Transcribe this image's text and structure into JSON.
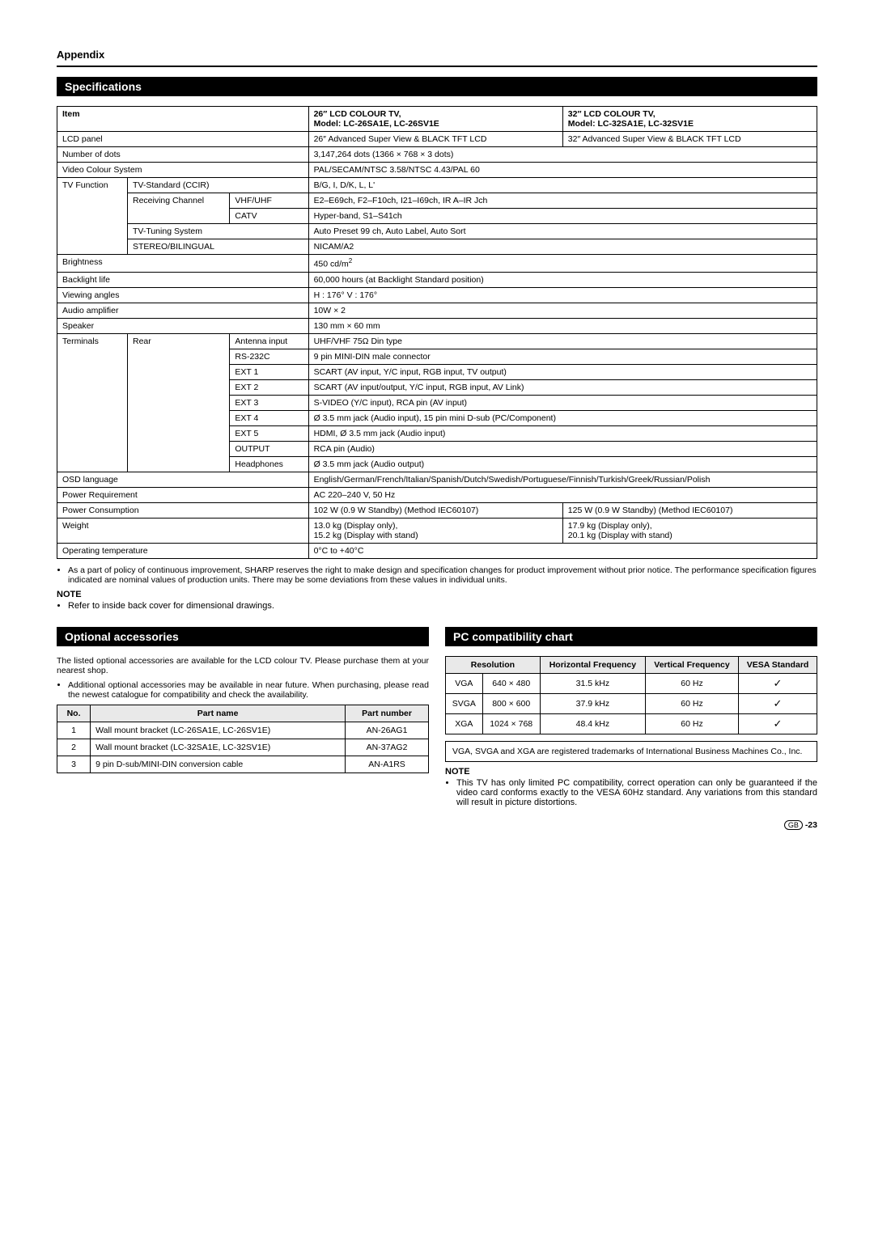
{
  "appendix": "Appendix",
  "sections": {
    "specs": "Specifications",
    "optional": "Optional accessories",
    "pc": "PC compatibility chart"
  },
  "spec_header": {
    "item": "Item",
    "col26_title": "26″ LCD COLOUR TV,",
    "col26_model": "Model: LC-26SA1E, LC-26SV1E",
    "col32_title": "32″ LCD COLOUR TV,",
    "col32_model": "Model: LC-32SA1E, LC-32SV1E"
  },
  "spec_rows": {
    "lcd_panel": "LCD panel",
    "lcd_panel_26": "26″ Advanced Super View & BLACK TFT LCD",
    "lcd_panel_32": "32″ Advanced Super View & BLACK TFT LCD",
    "num_dots": "Number of dots",
    "num_dots_v": "3,147,264 dots (1366 × 768 × 3 dots)",
    "vcs": "Video Colour System",
    "vcs_v": "PAL/SECAM/NTSC 3.58/NTSC 4.43/PAL 60",
    "tv_func": "TV Function",
    "tv_std": "TV-Standard (CCIR)",
    "tv_std_v": "B/G, I, D/K, L, L'",
    "recv_ch": "Receiving Channel",
    "vhf_uhf": "VHF/UHF",
    "vhf_uhf_v": "E2–E69ch, F2–F10ch, I21–I69ch, IR A–IR Jch",
    "catv": "CATV",
    "catv_v": "Hyper-band, S1–S41ch",
    "tuning": "TV-Tuning System",
    "tuning_v": "Auto Preset 99 ch, Auto Label, Auto Sort",
    "stereo": "STEREO/BILINGUAL",
    "stereo_v": "NICAM/A2",
    "brightness": "Brightness",
    "brightness_v": "450 cd/m",
    "backlight": "Backlight life",
    "backlight_v": "60,000 hours (at Backlight Standard position)",
    "viewing": "Viewing angles",
    "viewing_v": "H : 176°  V : 176°",
    "audio": "Audio amplifier",
    "audio_v": "10W × 2",
    "speaker": "Speaker",
    "speaker_v": "130 mm × 60 mm",
    "terminals": "Terminals",
    "rear": "Rear",
    "antenna": "Antenna input",
    "antenna_v": "UHF/VHF 75Ω Din type",
    "rs232": "RS-232C",
    "rs232_v": "9 pin MINI-DIN male connector",
    "ext1": "EXT 1",
    "ext1_v": "SCART (AV input, Y/C input, RGB input, TV output)",
    "ext2": "EXT 2",
    "ext2_v": "SCART (AV input/output, Y/C input, RGB input, AV Link)",
    "ext3": "EXT 3",
    "ext3_v": "S-VIDEO (Y/C input), RCA pin (AV input)",
    "ext4": "EXT 4",
    "ext4_v": "Ø 3.5 mm jack (Audio input), 15 pin mini D-sub (PC/Component)",
    "ext5": "EXT 5",
    "ext5_v": "HDMI, Ø 3.5 mm jack (Audio input)",
    "output": "OUTPUT",
    "output_v": "RCA pin (Audio)",
    "hp": "Headphones",
    "hp_v": "Ø 3.5 mm jack (Audio output)",
    "osd": "OSD language",
    "osd_v": "English/German/French/Italian/Spanish/Dutch/Swedish/Portuguese/Finnish/Turkish/Greek/Russian/Polish",
    "power_req": "Power Requirement",
    "power_req_v": "AC 220–240 V, 50 Hz",
    "power_con": "Power Consumption",
    "power_con_26": "102 W (0.9 W Standby) (Method IEC60107)",
    "power_con_32": "125 W (0.9 W Standby) (Method IEC60107)",
    "weight": "Weight",
    "weight_26a": "13.0 kg (Display only),",
    "weight_26b": "15.2 kg (Display with stand)",
    "weight_32a": "17.9 kg (Display only),",
    "weight_32b": "20.1 kg (Display with stand)",
    "optemp": "Operating temperature",
    "optemp_v": "0°C to +40°C"
  },
  "spec_footnote": "As a part of policy of continuous improvement, SHARP reserves the right to make design and specification changes for product improvement without prior notice. The performance specification figures indicated are nominal values of production units. There may be some deviations from these values in individual units.",
  "note_label": "NOTE",
  "note_spec": "Refer to inside back cover for dimensional drawings.",
  "optional_intro": "The listed optional accessories are available for the LCD colour TV. Please purchase them at your nearest shop.",
  "optional_bullet": "Additional optional accessories may be available in near future. When purchasing, please read the newest catalogue for compatibility and check the availability.",
  "parts_headers": {
    "no": "No.",
    "name": "Part name",
    "num": "Part number"
  },
  "parts": [
    {
      "no": "1",
      "name": "Wall mount bracket (LC-26SA1E, LC-26SV1E)",
      "num": "AN-26AG1"
    },
    {
      "no": "2",
      "name": "Wall mount bracket (LC-32SA1E, LC-32SV1E)",
      "num": "AN-37AG2"
    },
    {
      "no": "3",
      "name": "9 pin D-sub/MINI-DIN conversion cable",
      "num": "AN-A1RS"
    }
  ],
  "pc_headers": {
    "res": "Resolution",
    "hf": "Horizontal Frequency",
    "vf": "Vertical Frequency",
    "vesa": "VESA Standard"
  },
  "pc_rows": [
    {
      "mode": "VGA",
      "res": "640 × 480",
      "hf": "31.5 kHz",
      "vf": "60 Hz",
      "vesa": "✓"
    },
    {
      "mode": "SVGA",
      "res": "800 × 600",
      "hf": "37.9 kHz",
      "vf": "60 Hz",
      "vesa": "✓"
    },
    {
      "mode": "XGA",
      "res": "1024 × 768",
      "hf": "48.4 kHz",
      "vf": "60 Hz",
      "vesa": "✓"
    }
  ],
  "pc_boxnote": "VGA, SVGA and XGA are registered trademarks of International Business Machines Co., Inc.",
  "pc_note": "This TV has only limited PC compatibility, correct operation can only be guaranteed if the video card conforms exactly to the VESA 60Hz standard. Any variations from this standard will result in picture distortions.",
  "footer": {
    "gb": "GB",
    "page": "-23"
  }
}
